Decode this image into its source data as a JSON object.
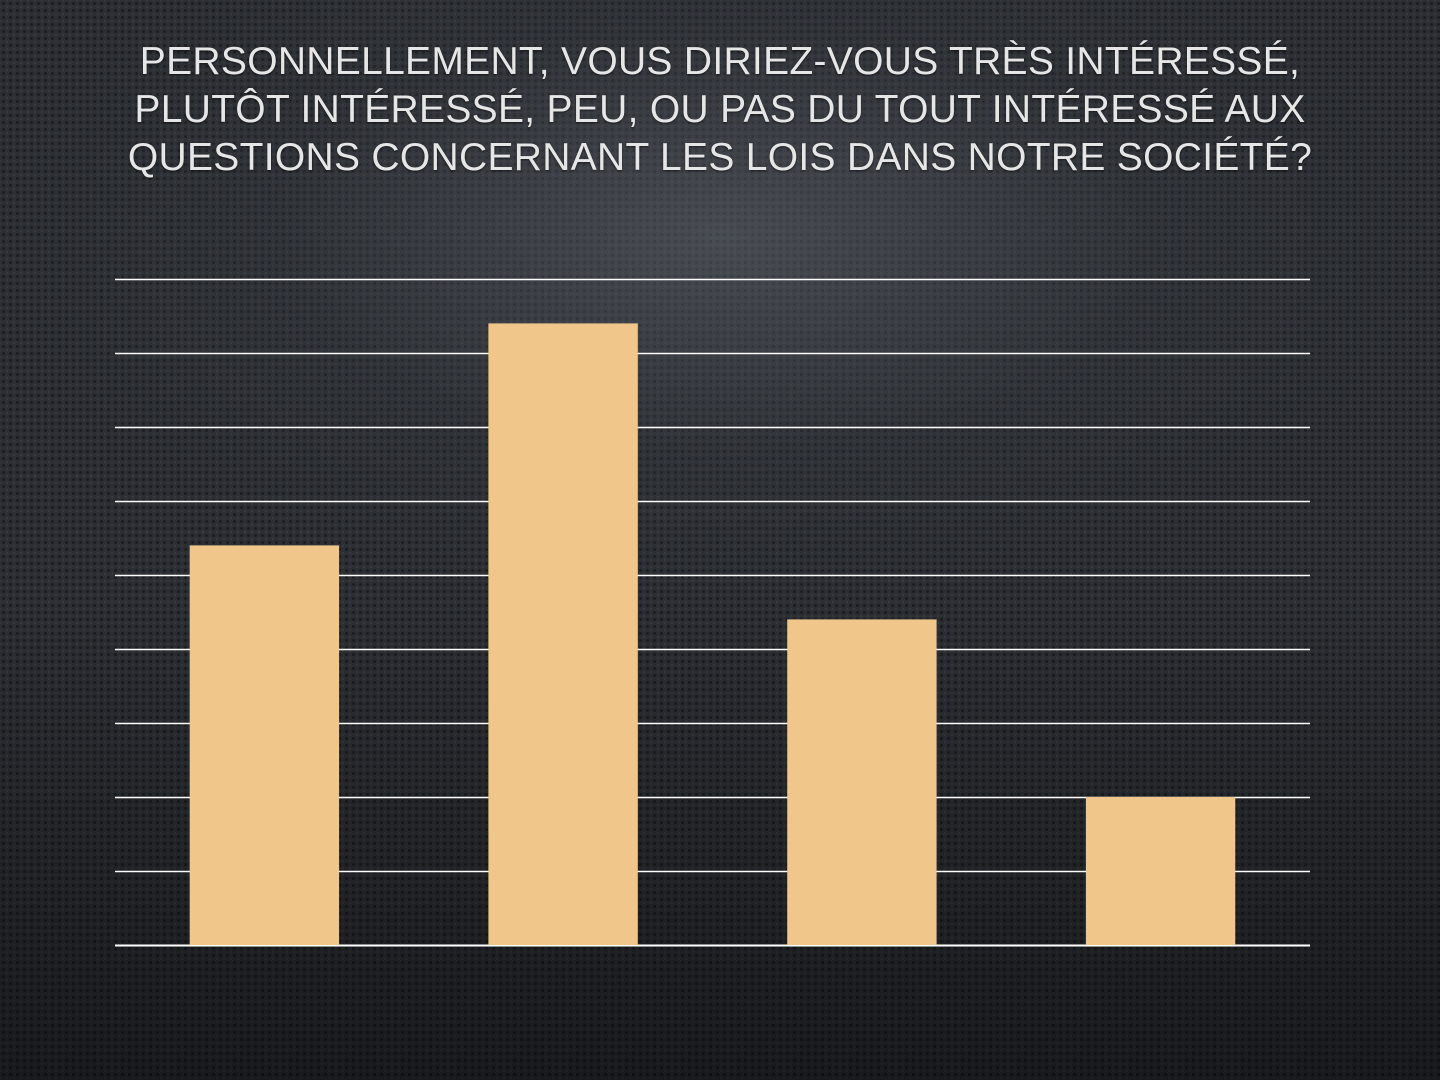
{
  "slide": {
    "title": "PERSONNELLEMENT, VOUS DIRIEZ-VOUS TRÈS INTÉRESSÉ, PLUTÔT INTÉRESSÉ, PEU, OU PAS DU TOUT INTÉRESSÉ AUX QUESTIONS CONCERNANT LES LOIS DANS NOTRE SOCIÉTÉ?"
  },
  "colors": {
    "bar": "#f0c68a",
    "gridline": "#ffffff",
    "title_text": "#e6e6e6",
    "background": "#2b2e33"
  },
  "chart_data": {
    "type": "bar",
    "title": "PERSONNELLEMENT, VOUS DIRIEZ-VOUS TRÈS INTÉRESSÉ, PLUTÔT INTÉRESSÉ, PEU, OU PAS DU TOUT INTÉRESSÉ AUX QUESTIONS CONCERNANT LES LOIS DANS NOTRE SOCIÉTÉ?",
    "categories": [
      "",
      "",
      "",
      ""
    ],
    "values": [
      5.4,
      8.4,
      4.4,
      2.0
    ],
    "xlabel": "",
    "ylabel": "",
    "ylim": [
      0,
      9
    ],
    "grid": true,
    "gridline_count": 10,
    "axis_labels_shown": false,
    "legend": "none"
  }
}
